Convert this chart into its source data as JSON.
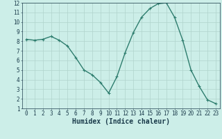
{
  "x": [
    0,
    1,
    2,
    3,
    4,
    5,
    6,
    7,
    8,
    9,
    10,
    11,
    12,
    13,
    14,
    15,
    16,
    17,
    18,
    19,
    20,
    21,
    22,
    23
  ],
  "y": [
    8.2,
    8.1,
    8.2,
    8.5,
    8.1,
    7.5,
    6.3,
    5.0,
    4.5,
    3.7,
    2.6,
    4.3,
    6.8,
    8.9,
    10.5,
    11.4,
    11.9,
    12.0,
    10.5,
    8.1,
    5.0,
    3.3,
    1.9,
    1.5
  ],
  "line_color": "#2e7d6e",
  "marker": "+",
  "markersize": 3,
  "linewidth": 1.0,
  "markeredgewidth": 0.8,
  "bg_color": "#cceee8",
  "grid_color": "#b0d4cc",
  "xlabel": "Humidex (Indice chaleur)",
  "xlabel_fontsize": 7,
  "xlabel_color": "#1a3a4a",
  "tick_fontsize": 5.5,
  "tick_color": "#1a3a4a",
  "xlim": [
    -0.5,
    23.5
  ],
  "ylim": [
    1,
    12
  ],
  "yticks": [
    1,
    2,
    3,
    4,
    5,
    6,
    7,
    8,
    9,
    10,
    11,
    12
  ],
  "xticks": [
    0,
    1,
    2,
    3,
    4,
    5,
    6,
    7,
    8,
    9,
    10,
    11,
    12,
    13,
    14,
    15,
    16,
    17,
    18,
    19,
    20,
    21,
    22,
    23
  ]
}
